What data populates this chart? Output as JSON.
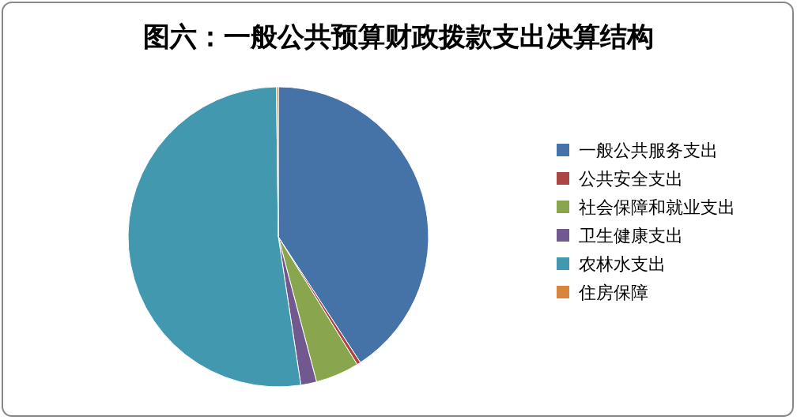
{
  "chart_data": {
    "type": "pie",
    "title": "图六：一般公共预算财政拨款支出决算结构",
    "categories": [
      "一般公共服务支出",
      "公共安全支出",
      "社会保障和就业支出",
      "卫生健康支出",
      "农林水支出",
      "住房保障"
    ],
    "values": [
      40.8,
      0.4,
      4.7,
      1.7,
      52.2,
      0.2
    ],
    "colors": [
      "#4572a7",
      "#aa4643",
      "#89a54e",
      "#71588f",
      "#4198af",
      "#db843d"
    ],
    "legend": "right"
  }
}
